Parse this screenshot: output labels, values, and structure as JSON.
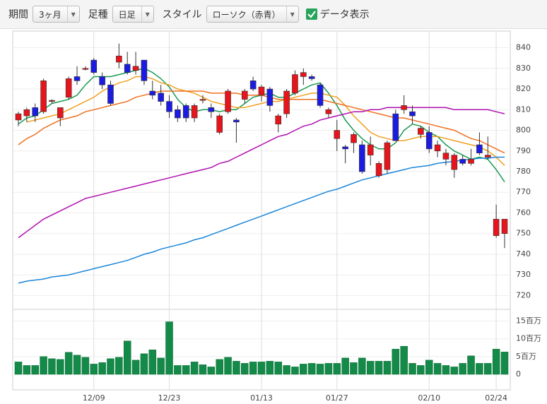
{
  "toolbar": {
    "period_label": "期間",
    "period": "3ヶ月",
    "bar_label": "足種",
    "bar": "日足",
    "style_label": "スタイル",
    "style": "ローソク（赤青）",
    "data_toggle": "データ表示"
  },
  "chart_data": {
    "type": "candlestick",
    "categories": [
      null,
      null,
      null,
      null,
      null,
      null,
      null,
      null,
      null,
      "12/09",
      null,
      null,
      null,
      null,
      null,
      null,
      null,
      null,
      "12/23",
      null,
      null,
      null,
      null,
      null,
      null,
      null,
      null,
      null,
      null,
      "01/13",
      null,
      null,
      null,
      null,
      null,
      null,
      null,
      null,
      "01/27",
      null,
      null,
      null,
      null,
      null,
      null,
      null,
      null,
      null,
      null,
      "02/10",
      null,
      null,
      null,
      null,
      null,
      null,
      null,
      "02/24",
      null
    ],
    "open": [
      805,
      807,
      811,
      809,
      814,
      806,
      816,
      826,
      830,
      834,
      826,
      822,
      833,
      832,
      829,
      834,
      819,
      818,
      814,
      810,
      812,
      806,
      815,
      811,
      799,
      809,
      805,
      815,
      824,
      817,
      820,
      803,
      808,
      818,
      826,
      826,
      822,
      808,
      796,
      792,
      794,
      793,
      788,
      778,
      781,
      808,
      810,
      809,
      798,
      799,
      790,
      786,
      781,
      786,
      784,
      793,
      787,
      749,
      750
    ],
    "high": [
      809,
      811,
      813,
      825,
      815,
      811,
      826,
      831,
      831,
      835,
      828,
      824,
      842,
      838,
      838,
      834,
      824,
      822,
      817,
      812,
      813,
      813,
      817,
      813,
      808,
      820,
      806,
      820,
      826,
      822,
      821,
      808,
      820,
      829,
      830,
      827,
      823,
      811,
      805,
      793,
      799,
      795,
      797,
      785,
      795,
      810,
      817,
      812,
      802,
      802,
      795,
      791,
      789,
      788,
      791,
      799,
      797,
      764,
      757
    ],
    "low": [
      802,
      804,
      804,
      808,
      813,
      802,
      815,
      822,
      829,
      827,
      820,
      812,
      830,
      827,
      827,
      822,
      815,
      812,
      806,
      804,
      804,
      804,
      813,
      806,
      798,
      808,
      794,
      813,
      819,
      814,
      809,
      799,
      806,
      817,
      822,
      824,
      811,
      806,
      790,
      784,
      789,
      779,
      783,
      777,
      779,
      795,
      808,
      803,
      796,
      789,
      787,
      783,
      777,
      783,
      783,
      788,
      786,
      748,
      743
    ],
    "close": [
      808,
      810,
      807,
      824,
      814.5,
      811,
      825,
      824,
      830,
      828,
      822,
      813,
      836,
      828,
      831,
      824,
      817,
      814,
      809,
      806,
      806,
      812,
      815,
      809,
      807,
      819,
      804,
      819,
      820,
      821,
      812,
      807,
      819,
      827,
      828,
      825,
      812,
      810,
      800,
      791,
      798,
      780,
      793,
      784,
      794,
      795,
      812,
      807,
      801,
      791,
      793,
      789,
      788,
      784,
      786,
      789,
      788,
      757,
      757
    ],
    "up_color": "#e8141c",
    "down_color": "#1c1ce0",
    "ylim": [
      714,
      846
    ],
    "yticks": [
      720,
      730,
      740,
      750,
      760,
      770,
      780,
      790,
      800,
      810,
      820,
      830,
      840
    ],
    "moving_averages": [
      {
        "color": "#1a9a50",
        "values": [
          803,
          806,
          807,
          810,
          813,
          814,
          815,
          817,
          822,
          826,
          826,
          826,
          827,
          828,
          829,
          830,
          828,
          825,
          821,
          815,
          811,
          809,
          810,
          810,
          809,
          810,
          810,
          813,
          816,
          817,
          818,
          816,
          816,
          818,
          820,
          822,
          823,
          818,
          812,
          805,
          800,
          796,
          793,
          791,
          791,
          794,
          800,
          803,
          802,
          799,
          797,
          793,
          790,
          788,
          786,
          787,
          786,
          781,
          775
        ]
      },
      {
        "color": "#f0a020",
        "values": [
          null,
          804,
          805,
          806,
          807,
          808,
          810,
          812,
          814,
          816,
          819,
          821,
          823,
          824,
          826,
          826,
          825,
          823,
          822,
          820,
          819,
          818,
          816,
          814,
          813,
          812,
          811,
          811,
          812,
          813,
          814,
          814,
          815,
          816,
          817,
          818,
          818,
          817,
          816,
          812,
          807,
          803,
          799,
          797,
          796,
          795,
          795,
          796,
          797,
          797,
          797,
          796,
          795,
          794,
          793,
          792,
          790,
          787,
          783
        ]
      },
      {
        "color": "#f07020",
        "values": [
          793,
          796,
          798,
          801,
          803,
          805,
          806,
          807,
          809,
          810,
          811,
          812,
          813,
          814,
          816,
          817,
          818,
          819,
          819,
          819,
          819,
          819,
          819,
          818,
          818,
          818,
          818,
          817,
          817,
          817,
          816,
          815,
          815,
          815,
          815,
          815,
          815,
          814,
          813,
          812,
          811,
          810,
          809,
          808,
          807,
          806,
          806,
          805,
          804,
          803,
          802,
          801,
          800,
          798,
          796,
          795,
          793,
          791,
          789
        ]
      },
      {
        "color": "#b010b0",
        "values": [
          748,
          751,
          754,
          757,
          759,
          761,
          763,
          765,
          767,
          768,
          769,
          770,
          771,
          772,
          773,
          774,
          775,
          776,
          777,
          778,
          779,
          780,
          781,
          782,
          784,
          785,
          787,
          789,
          791,
          793,
          795,
          797,
          798,
          800,
          802,
          803,
          805,
          806,
          807,
          808,
          809,
          809,
          810,
          810,
          811,
          811,
          811,
          811,
          811,
          811,
          811,
          811,
          810,
          810,
          810,
          810,
          810,
          809,
          808
        ]
      },
      {
        "color": "#1a86d8",
        "values": [
          726,
          727,
          727.5,
          728,
          729,
          729.5,
          730,
          731,
          732,
          733,
          734,
          735,
          736,
          737,
          738.5,
          740,
          741,
          742.5,
          743.5,
          744.5,
          745.5,
          747,
          748,
          749.5,
          751,
          752.5,
          754,
          755.5,
          757,
          758.5,
          760,
          761.5,
          763,
          764.5,
          766,
          767.5,
          769,
          770.5,
          771.5,
          773,
          774.5,
          776,
          777,
          778,
          779,
          780,
          781,
          782,
          782.5,
          783,
          784,
          784.5,
          785,
          785.5,
          786,
          786.5,
          786.5,
          787,
          787
        ]
      }
    ],
    "volume": [
      3.5,
      2.5,
      2.5,
      5,
      4.4,
      4.2,
      6.2,
      5.4,
      4.8,
      2.9,
      3.3,
      4.4,
      4.8,
      9.4,
      4,
      5.8,
      6.9,
      4.6,
      14.8,
      2.5,
      2.5,
      3.5,
      2.7,
      2.1,
      4.2,
      4.8,
      3.7,
      3.1,
      3.5,
      3.5,
      3.7,
      3.5,
      2.5,
      2.1,
      2.9,
      3.1,
      2.9,
      3.1,
      3.1,
      4.6,
      3.3,
      4.6,
      3.7,
      3.7,
      3.7,
      7.1,
      7.9,
      3.1,
      2.5,
      4,
      3.1,
      2.5,
      2.1,
      3.1,
      5.2,
      3.1,
      3.1,
      7.1,
      6.3
    ],
    "volume_color": "#138a48",
    "volume_ylim": [
      0,
      17.5
    ],
    "volume_yticks": [
      0,
      {
        "value": 5,
        "label": "5百万"
      },
      {
        "value": 10,
        "label": "10百万"
      },
      {
        "value": 15,
        "label": "15百万"
      }
    ]
  }
}
